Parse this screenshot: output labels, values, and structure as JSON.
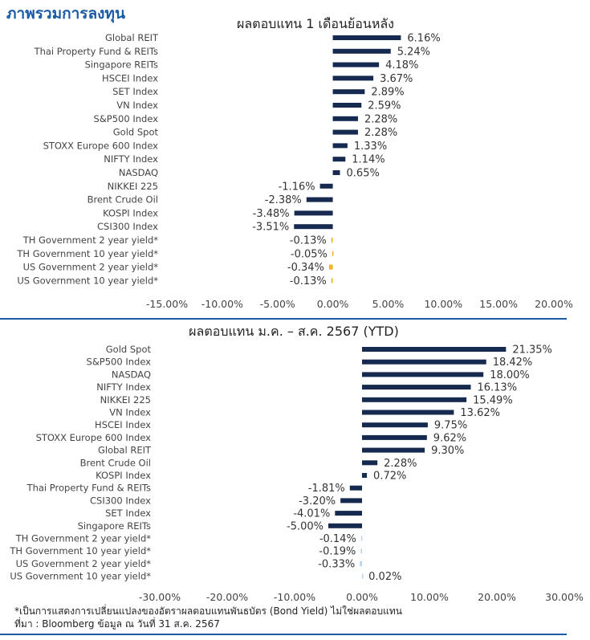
{
  "header": {
    "title": "ภาพรวมการลงทุน"
  },
  "footnotes": {
    "note": "*เป็นการแสดงการเปลี่ยนแปลงของอัตราผลตอบแทนพันธบัตร (Bond Yield) ไม่ใช่ผลตอบแทน",
    "source": "ที่มา : Bloomberg ข้อมูล ณ วันที่ 31 ส.ค. 2567"
  },
  "colors": {
    "accent": "#1c5aa6",
    "bar": "#152a4e",
    "bond_bar": "#f0b323",
    "bond_bar_light": "#b9d3ee"
  },
  "chart_data": [
    {
      "type": "bar",
      "orientation": "horizontal",
      "title": "ผลตอบแทน 1 เดือนย้อนหลัง",
      "xlim": [
        -15,
        20
      ],
      "xticks": [
        -15,
        -10,
        -5,
        0,
        5,
        10,
        15,
        20
      ],
      "tick_labels": [
        "-15.00%",
        "-10.00%",
        "-5.00%",
        "0.00%",
        "5.00%",
        "10.00%",
        "15.00%",
        "20.00%"
      ],
      "categories": [
        "Global REIT",
        "Thai Property Fund & REITs",
        "Singapore REITs",
        "HSCEI Index",
        "SET Index",
        "VN Index",
        "S&P500 Index",
        "Gold Spot",
        "STOXX Europe 600 Index",
        "NIFTY Index",
        "NASDAQ",
        "NIKKEI 225",
        "Brent Crude Oil",
        "KOSPI Index",
        "CSI300 Index",
        "TH Government 2 year yield*",
        "TH Government 10 year yield*",
        "US Government 2 year yield*",
        "US Government 10 year yield*"
      ],
      "values": [
        6.16,
        5.24,
        4.18,
        3.67,
        2.89,
        2.59,
        2.28,
        2.28,
        1.33,
        1.14,
        0.65,
        -1.16,
        -2.38,
        -3.48,
        -3.51,
        -0.13,
        -0.05,
        -0.34,
        -0.13
      ],
      "value_labels": [
        "6.16%",
        "5.24%",
        "4.18%",
        "3.67%",
        "2.89%",
        "2.59%",
        "2.28%",
        "2.28%",
        "1.33%",
        "1.14%",
        "0.65%",
        "-1.16%",
        "-2.38%",
        "-3.48%",
        "-3.51%",
        "-0.13%",
        "-0.05%",
        "-0.34%",
        "-0.13%"
      ],
      "bar_colors": [
        "#152a4e",
        "#152a4e",
        "#152a4e",
        "#152a4e",
        "#152a4e",
        "#152a4e",
        "#152a4e",
        "#152a4e",
        "#152a4e",
        "#152a4e",
        "#152a4e",
        "#152a4e",
        "#152a4e",
        "#152a4e",
        "#152a4e",
        "#f0b323",
        "#f0b323",
        "#f0b323",
        "#f0b323"
      ],
      "grid": false
    },
    {
      "type": "bar",
      "orientation": "horizontal",
      "title": "ผลตอบแทน ม.ค. – ส.ค. 2567 (YTD)",
      "xlim": [
        -30,
        30
      ],
      "xticks": [
        -30,
        -20,
        -10,
        0,
        10,
        20,
        30
      ],
      "tick_labels": [
        "-30.00%",
        "-20.00%",
        "-10.00%",
        "0.00%",
        "10.00%",
        "20.00%",
        "30.00%"
      ],
      "categories": [
        "Gold Spot",
        "S&P500 Index",
        "NASDAQ",
        "NIFTY Index",
        "NIKKEI 225",
        "VN Index",
        "HSCEI Index",
        "STOXX Europe 600 Index",
        "Global REIT",
        "Brent Crude Oil",
        "KOSPI Index",
        "Thai Property Fund & REITs",
        "CSI300 Index",
        "SET Index",
        "Singapore REITs",
        "TH Government 2 year yield*",
        "TH Government 10 year yield*",
        "US Government 2 year yield*",
        "US Government 10 year yield*"
      ],
      "values": [
        21.35,
        18.42,
        18.0,
        16.13,
        15.49,
        13.62,
        9.75,
        9.62,
        9.3,
        2.28,
        0.72,
        -1.81,
        -3.2,
        -4.01,
        -5.0,
        -0.14,
        -0.19,
        -0.33,
        0.02
      ],
      "value_labels": [
        "21.35%",
        "18.42%",
        "18.00%",
        "16.13%",
        "15.49%",
        "13.62%",
        "9.75%",
        "9.62%",
        "9.30%",
        "2.28%",
        "0.72%",
        "-1.81%",
        "-3.20%",
        "-4.01%",
        "-5.00%",
        "-0.14%",
        "-0.19%",
        "-0.33%",
        "0.02%"
      ],
      "bar_colors": [
        "#152a4e",
        "#152a4e",
        "#152a4e",
        "#152a4e",
        "#152a4e",
        "#152a4e",
        "#152a4e",
        "#152a4e",
        "#152a4e",
        "#152a4e",
        "#152a4e",
        "#152a4e",
        "#152a4e",
        "#152a4e",
        "#152a4e",
        "#b9d3ee",
        "#b9d3ee",
        "#b9d3ee",
        "#b9d3ee"
      ],
      "grid": false
    }
  ]
}
